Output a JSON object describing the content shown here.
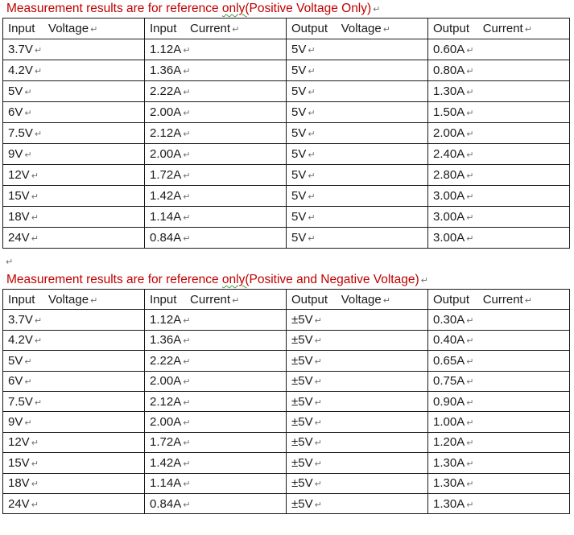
{
  "document": {
    "pilcrow": "↵",
    "colors": {
      "title_red": "#c00000",
      "grammar_squiggle_green": "#3f9e3f",
      "body_text": "#1a1a1a",
      "table_border": "#1a1a1a",
      "formatting_mark_gray": "#6f6f6f"
    },
    "tables": [
      {
        "title": {
          "pre": "Measurement results are for reference ",
          "flagged": "only(",
          "post": "Positive Voltage Only)"
        },
        "headers": [
          "Input    Voltage",
          "Input    Current",
          "Output    Voltage",
          "Output    Current"
        ],
        "rows": [
          [
            "3.7V",
            "1.12A",
            "5V",
            "0.60A"
          ],
          [
            "4.2V",
            "1.36A",
            "5V",
            "0.80A"
          ],
          [
            "5V",
            "2.22A",
            "5V",
            "1.30A"
          ],
          [
            "6V",
            "2.00A",
            "5V",
            "1.50A"
          ],
          [
            "7.5V",
            "2.12A",
            "5V",
            "2.00A"
          ],
          [
            "9V",
            "2.00A",
            "5V",
            "2.40A"
          ],
          [
            "12V",
            "1.72A",
            "5V",
            "2.80A"
          ],
          [
            "15V",
            "1.42A",
            "5V",
            "3.00A"
          ],
          [
            "18V",
            "1.14A",
            "5V",
            "3.00A"
          ],
          [
            "24V",
            "0.84A",
            "5V",
            "3.00A"
          ]
        ]
      },
      {
        "title": {
          "pre": "Measurement results are for reference ",
          "flagged": "only(",
          "post": "Positive and Negative Voltage)"
        },
        "headers": [
          "Input    Voltage",
          "Input    Current",
          "Output    Voltage",
          "Output    Current"
        ],
        "rows": [
          [
            "3.7V",
            "1.12A",
            "±5V",
            "0.30A"
          ],
          [
            "4.2V",
            "1.36A",
            "±5V",
            "0.40A"
          ],
          [
            "5V",
            "2.22A",
            "±5V",
            "0.65A"
          ],
          [
            "6V",
            "2.00A",
            "±5V",
            "0.75A"
          ],
          [
            "7.5V",
            "2.12A",
            "±5V",
            "0.90A"
          ],
          [
            "9V",
            "2.00A",
            "±5V",
            "1.00A"
          ],
          [
            "12V",
            "1.72A",
            "±5V",
            "1.20A"
          ],
          [
            "15V",
            "1.42A",
            "±5V",
            "1.30A"
          ],
          [
            "18V",
            "1.14A",
            "±5V",
            "1.30A"
          ],
          [
            "24V",
            "0.84A",
            "±5V",
            "1.30A"
          ]
        ]
      }
    ]
  }
}
